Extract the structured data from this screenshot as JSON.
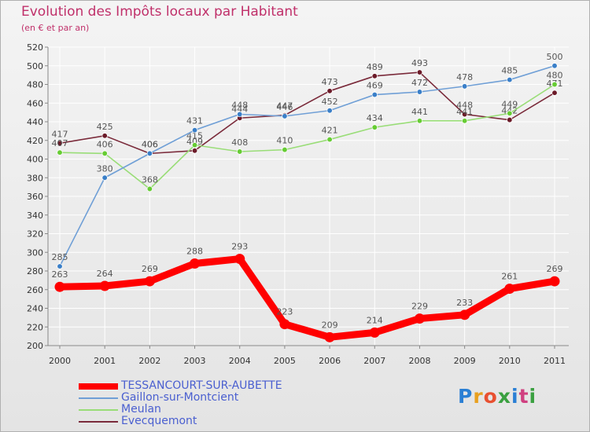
{
  "logo": {
    "text": "Proxiti"
  },
  "chart_data": {
    "type": "line",
    "title": "Evolution des Impôts locaux par Habitant",
    "subtitle": "(en € et par an)",
    "xlabel": "",
    "ylabel": "",
    "ylim": [
      200,
      520
    ],
    "ytick_step": 20,
    "grid": true,
    "categories": [
      "2000",
      "2001",
      "2002",
      "2003",
      "2004",
      "2005",
      "2006",
      "2007",
      "2008",
      "2009",
      "2010",
      "2011"
    ],
    "series": [
      {
        "name": "TESSANCOURT-SUR-AUBETTE",
        "color": "#ff0000",
        "marker": "#ff0000",
        "bold": true,
        "values": [
          263,
          264,
          269,
          288,
          293,
          223,
          209,
          214,
          229,
          233,
          261,
          269
        ]
      },
      {
        "name": "Gaillon-sur-Montcient",
        "color": "#6f9fd6",
        "marker": "#3a7fc8",
        "bold": false,
        "values": [
          285,
          380,
          406,
          431,
          448,
          446,
          452,
          469,
          472,
          478,
          485,
          500
        ]
      },
      {
        "name": "Meulan",
        "color": "#99dd77",
        "marker": "#66cc33",
        "bold": false,
        "values": [
          407,
          406,
          368,
          415,
          408,
          410,
          421,
          434,
          441,
          441,
          449,
          480
        ]
      },
      {
        "name": "Evecquemont",
        "color": "#7a2a3a",
        "marker": "#6b1a28",
        "bold": false,
        "values": [
          417,
          425,
          406,
          409,
          444,
          447,
          473,
          489,
          493,
          448,
          442,
          471
        ]
      }
    ]
  }
}
